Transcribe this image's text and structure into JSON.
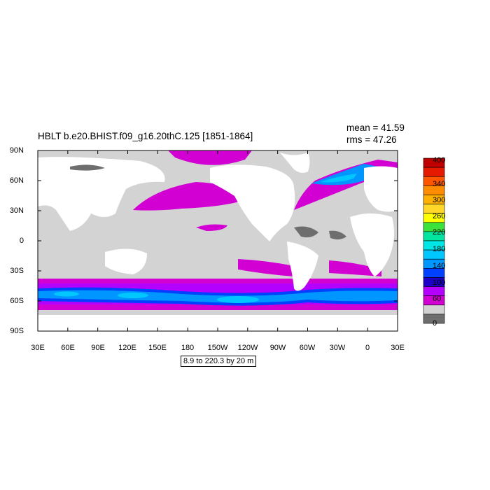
{
  "header": {
    "title": "HBLT b.e20.BHIST.f09_g16.20thC.125 [1851-1864]",
    "mean": "mean = 41.59",
    "rms": "rms = 47.26"
  },
  "axes": {
    "y_ticks": [
      "90N",
      "60N",
      "30N",
      "0",
      "30S",
      "60S",
      "90S"
    ],
    "x_ticks": [
      "30E",
      "60E",
      "90E",
      "120E",
      "150E",
      "180",
      "150W",
      "120W",
      "90W",
      "60W",
      "30W",
      "0",
      "30E"
    ]
  },
  "colorbar": {
    "labels": [
      "400",
      "340",
      "300",
      "260",
      "220",
      "180",
      "140",
      "100",
      "60",
      "0"
    ],
    "colors": [
      "#c00000",
      "#e61a00",
      "#ff5500",
      "#ff8c00",
      "#ffb000",
      "#ffd82a",
      "#ffff00",
      "#3ce23c",
      "#00e6a0",
      "#00e6e6",
      "#00c8ff",
      "#0096ff",
      "#0040ff",
      "#1c00c8",
      "#b400ff",
      "#d200d2",
      "#d2d2d2",
      "#6e6e6e"
    ]
  },
  "contour_info": "8.9 to 220.3 by 20 m",
  "colors": {
    "land": "#ffffff",
    "ocean_low": "#d3d3d3",
    "ocean_zero": "#6e6e6e",
    "magenta": "#d200d2",
    "purple": "#b400ff",
    "blue": "#0040ff",
    "lightblue": "#0096ff",
    "cyan": "#00c8ff"
  }
}
